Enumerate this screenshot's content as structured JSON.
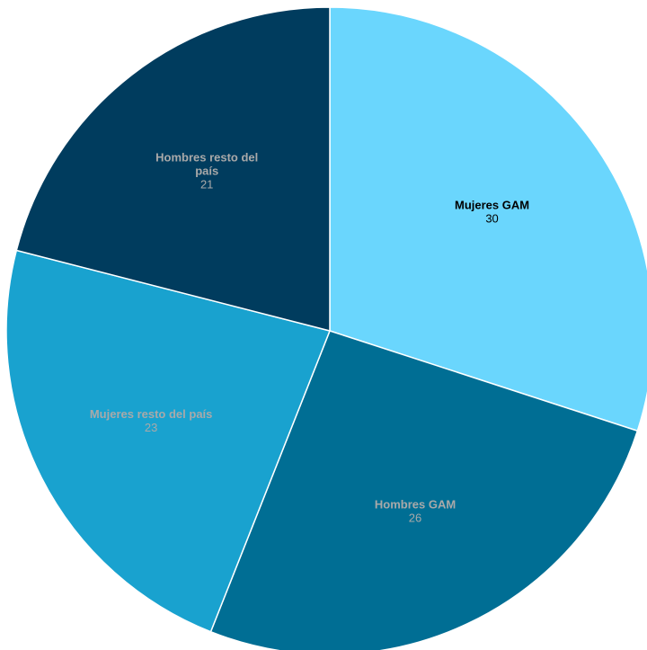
{
  "chart_data": {
    "type": "pie",
    "title": "",
    "start_angle_deg": 0,
    "direction": "clockwise",
    "slices": [
      {
        "label": "Mujeres GAM",
        "label_lines": [
          "Mujeres GAM"
        ],
        "value": 30,
        "value_text": "30",
        "color": "#6ad6fd",
        "label_color": "#000000"
      },
      {
        "label": "Hombres GAM",
        "label_lines": [
          "Hombres GAM"
        ],
        "value": 26,
        "value_text": "26",
        "color": "#006e94",
        "label_color": "#a9a9a9"
      },
      {
        "label": "Mujeres resto del país",
        "label_lines": [
          "Mujeres resto del país"
        ],
        "value": 23,
        "value_text": "23",
        "color": "#19a2cf",
        "label_color": "#a9a9a9"
      },
      {
        "label": "Hombres resto del país",
        "label_lines": [
          "Hombres resto del",
          "país"
        ],
        "value": 21,
        "value_text": "21",
        "color": "#003c5e",
        "label_color": "#a9a9a9"
      }
    ]
  }
}
